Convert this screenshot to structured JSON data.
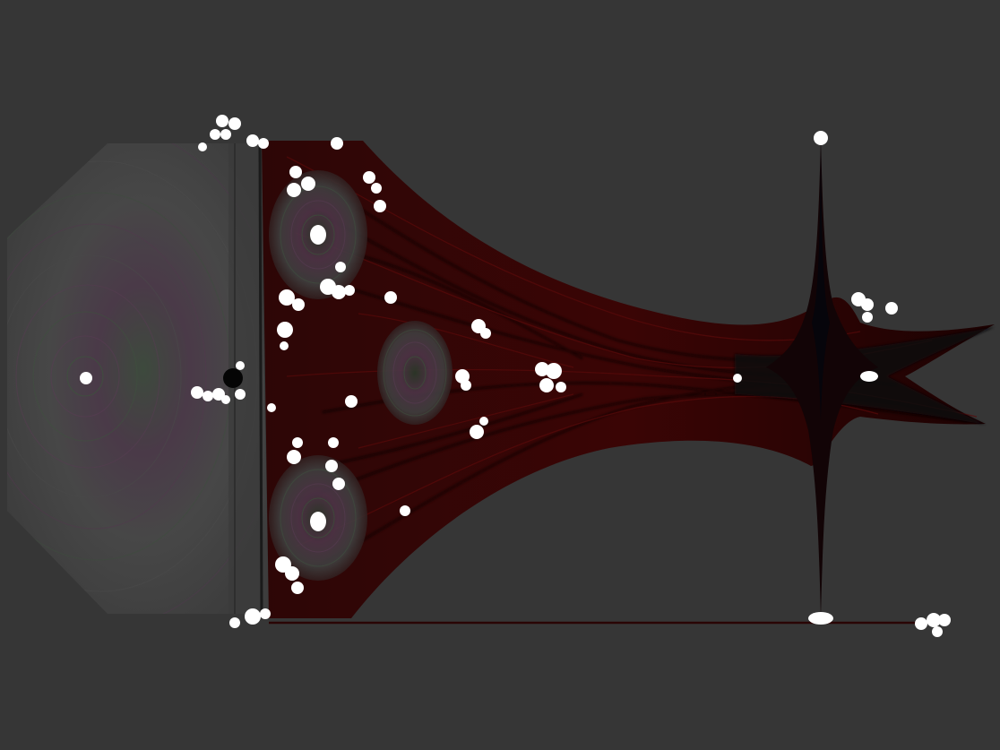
{
  "scene": {
    "background_color": "#363636",
    "field_colors": {
      "dark_red": "#4a0606",
      "deep_red": "#2a0303",
      "black_blue": "#06060e",
      "ring_green": "#3b4a3a",
      "ring_purple": "#4d3548",
      "ring_gray": "#585858",
      "particle_white": "#ffffff",
      "center_black": "#050505"
    },
    "regions": [
      {
        "name": "left-octagon-phase-region"
      },
      {
        "name": "upper-vortex-region"
      },
      {
        "name": "center-vortex-region"
      },
      {
        "name": "lower-vortex-region"
      },
      {
        "name": "trumpet-flow-region"
      },
      {
        "name": "vertical-spike-region"
      }
    ]
  }
}
